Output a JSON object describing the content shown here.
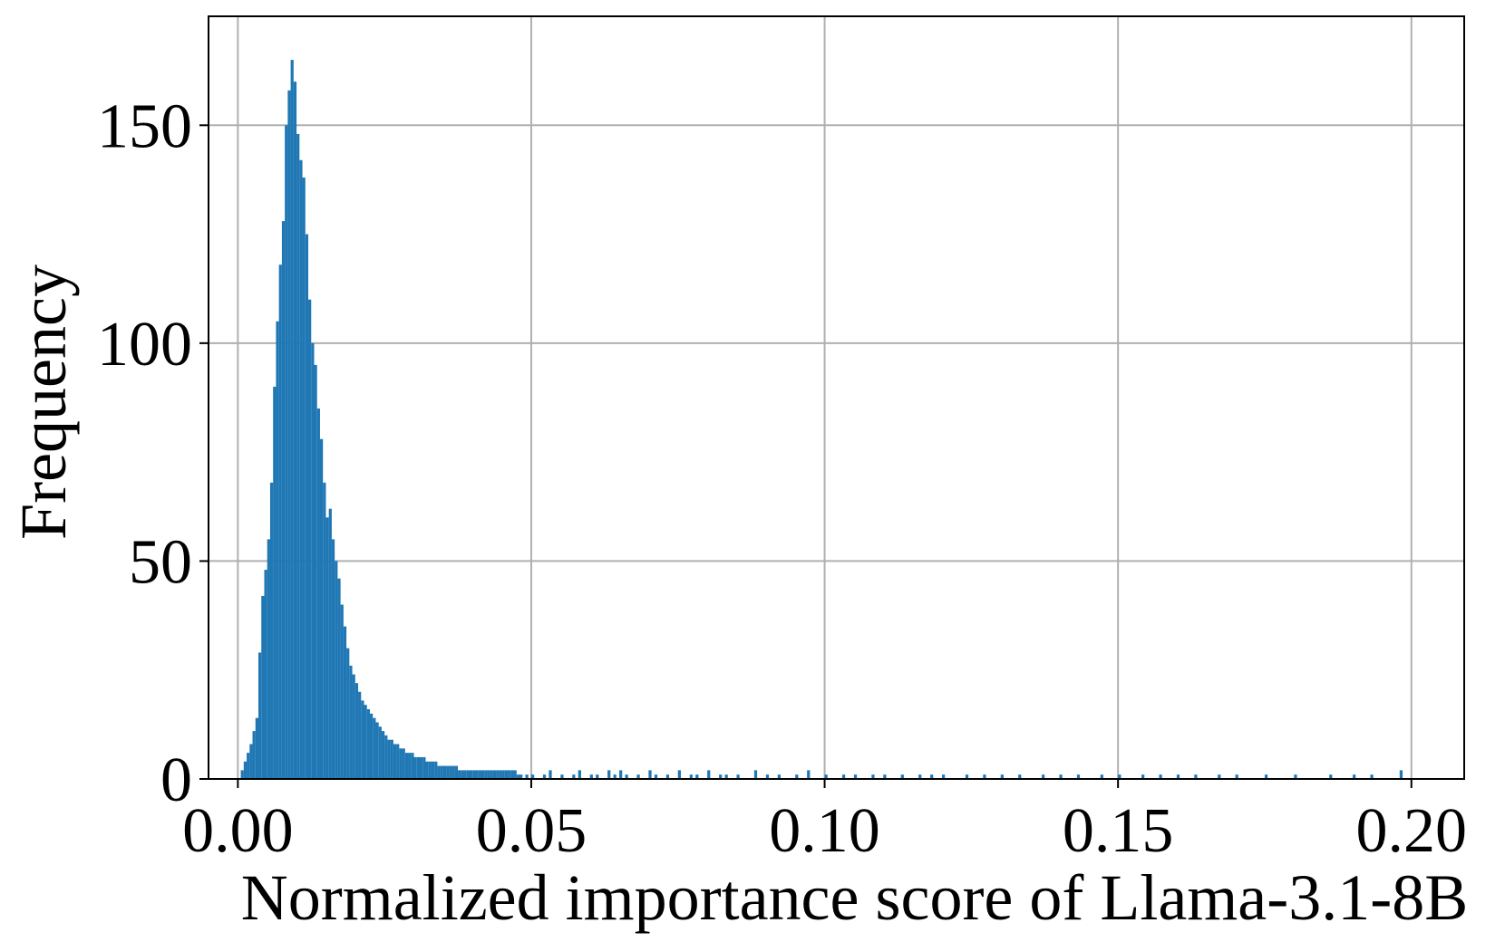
{
  "chart_data": {
    "type": "bar",
    "subtype": "histogram",
    "title": "",
    "xlabel": "Normalized importance score of Llama-3.1-8B",
    "ylabel": "Frequency",
    "xlim": [
      -0.005,
      0.209
    ],
    "ylim": [
      0,
      175
    ],
    "grid": true,
    "bar_color": "#1f77b4",
    "bin_width": 0.0005,
    "x_ticks": [
      0.0,
      0.05,
      0.1,
      0.15,
      0.2
    ],
    "x_tick_labels": [
      "0.00",
      "0.05",
      "0.10",
      "0.15",
      "0.20"
    ],
    "y_ticks": [
      0,
      50,
      100,
      150
    ],
    "y_tick_labels": [
      "0",
      "50",
      "100",
      "150"
    ],
    "bins": {
      "x": [
        0.0005,
        0.001,
        0.0015,
        0.002,
        0.0025,
        0.003,
        0.0035,
        0.004,
        0.0045,
        0.005,
        0.0055,
        0.006,
        0.0065,
        0.007,
        0.0075,
        0.008,
        0.0085,
        0.009,
        0.0095,
        0.01,
        0.0105,
        0.011,
        0.0115,
        0.012,
        0.0125,
        0.013,
        0.0135,
        0.014,
        0.0145,
        0.015,
        0.0155,
        0.016,
        0.0165,
        0.017,
        0.0175,
        0.018,
        0.0185,
        0.019,
        0.0195,
        0.02,
        0.0205,
        0.021,
        0.0215,
        0.022,
        0.0225,
        0.023,
        0.0235,
        0.024,
        0.0245,
        0.025,
        0.0255,
        0.026,
        0.0265,
        0.027,
        0.0275,
        0.028,
        0.0285,
        0.029,
        0.0295,
        0.03,
        0.0305,
        0.031,
        0.0315,
        0.032,
        0.0325,
        0.033,
        0.0335,
        0.034,
        0.0345,
        0.035,
        0.0355,
        0.036,
        0.0365,
        0.037,
        0.0375,
        0.038,
        0.0385,
        0.039,
        0.0395,
        0.04,
        0.0405,
        0.041,
        0.0415,
        0.042,
        0.0425,
        0.043,
        0.0435,
        0.044,
        0.0445,
        0.045,
        0.0455,
        0.046,
        0.0465,
        0.047,
        0.0475,
        0.048,
        0.049,
        0.05,
        0.052,
        0.053,
        0.055,
        0.057,
        0.058,
        0.06,
        0.061,
        0.063,
        0.064,
        0.065,
        0.066,
        0.068,
        0.07,
        0.071,
        0.073,
        0.075,
        0.077,
        0.078,
        0.08,
        0.082,
        0.083,
        0.085,
        0.088,
        0.09,
        0.092,
        0.095,
        0.097,
        0.1,
        0.103,
        0.105,
        0.108,
        0.11,
        0.113,
        0.116,
        0.118,
        0.12,
        0.124,
        0.127,
        0.13,
        0.133,
        0.137,
        0.14,
        0.143,
        0.147,
        0.15,
        0.154,
        0.157,
        0.16,
        0.163,
        0.167,
        0.17,
        0.175,
        0.18,
        0.186,
        0.19,
        0.193,
        0.198
      ],
      "y": [
        2,
        4,
        6,
        8,
        11,
        14,
        29,
        42,
        48,
        55,
        68,
        90,
        105,
        118,
        128,
        150,
        158,
        165,
        160,
        148,
        142,
        138,
        125,
        110,
        100,
        95,
        85,
        78,
        68,
        60,
        62,
        55,
        50,
        46,
        40,
        35,
        30,
        26,
        24,
        22,
        20,
        18,
        17,
        16,
        15,
        14,
        13,
        12,
        11,
        10,
        9,
        9,
        8,
        8,
        7,
        7,
        6,
        6,
        6,
        5,
        5,
        5,
        5,
        4,
        4,
        4,
        4,
        3,
        3,
        3,
        3,
        3,
        3,
        3,
        2,
        2,
        2,
        2,
        2,
        2,
        2,
        2,
        2,
        2,
        2,
        2,
        2,
        2,
        2,
        2,
        2,
        2,
        2,
        2,
        1,
        1,
        1,
        1,
        1,
        2,
        1,
        1,
        2,
        1,
        1,
        2,
        1,
        2,
        1,
        1,
        2,
        1,
        1,
        2,
        1,
        1,
        2,
        1,
        1,
        1,
        2,
        1,
        1,
        1,
        2,
        1,
        1,
        1,
        1,
        1,
        1,
        1,
        1,
        1,
        1,
        1,
        1,
        1,
        1,
        1,
        1,
        1,
        1,
        1,
        1,
        1,
        1,
        1,
        1,
        1,
        1,
        1,
        1,
        1,
        2
      ]
    }
  }
}
